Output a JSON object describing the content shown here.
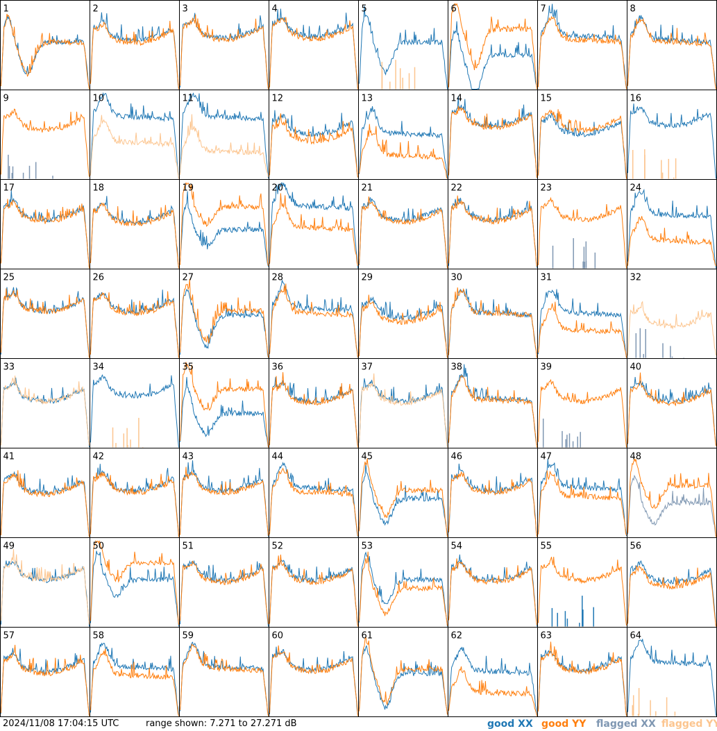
{
  "footer": {
    "timestamp": "2024/11/08 17:04:15 UTC",
    "range_text": "range shown: 7.271 to 27.271 dB"
  },
  "legend": {
    "good_xx": "good XX",
    "good_yy": "good YY",
    "flagged_xx": "flagged XX",
    "flagged_yy": "flagged YY"
  },
  "colors": {
    "good_xx": "#1f77b4",
    "good_yy": "#ff7f0e",
    "flagged_xx": "#7f97b2",
    "flagged_yy": "#fcc58f",
    "frame": "#000000",
    "background": "#ffffff"
  },
  "chart_data": {
    "type": "line",
    "layout": "8x8 small multiples of per-antenna spectra",
    "ylim_db": [
      7.271,
      27.271
    ],
    "series_names": [
      "good XX",
      "good YY",
      "flagged XX",
      "flagged YY"
    ],
    "panels": [
      {
        "label": "1",
        "xx": "good",
        "yy": "good",
        "shape": "drop",
        "xx_level": 0.55,
        "yy_level": 0.55,
        "dip": 0.75
      },
      {
        "label": "2",
        "xx": "good",
        "yy": "good",
        "shape": "bowl",
        "xx_level": 0.75,
        "yy_level": 0.72
      },
      {
        "label": "3",
        "xx": "good",
        "yy": "good",
        "shape": "bowl",
        "xx_level": 0.78,
        "yy_level": 0.76
      },
      {
        "label": "4",
        "xx": "good",
        "yy": "good",
        "shape": "bowl",
        "xx_level": 0.8,
        "yy_level": 0.77
      },
      {
        "label": "5",
        "xx": "good",
        "yy": "flagged",
        "shape": "drop",
        "xx_level": 0.55,
        "yy_level": 0.0,
        "dip": 0.7
      },
      {
        "label": "6",
        "xx": "good",
        "yy": "good",
        "shape": "drop",
        "xx_level": 0.4,
        "yy_level": 0.7,
        "dip": 0.9
      },
      {
        "label": "7",
        "xx": "good",
        "yy": "good",
        "shape": "flat",
        "xx_level": 0.65,
        "yy_level": 0.6
      },
      {
        "label": "8",
        "xx": "good",
        "yy": "good",
        "shape": "flat",
        "xx_level": 0.6,
        "yy_level": 0.58
      },
      {
        "label": "9",
        "xx": "flagged",
        "yy": "good",
        "shape": "bowl",
        "xx_level": 0.0,
        "yy_level": 0.75
      },
      {
        "label": "10",
        "xx": "good",
        "yy": "flagged",
        "shape": "flat",
        "xx_level": 0.75,
        "yy_level": 0.45
      },
      {
        "label": "11",
        "xx": "good",
        "yy": "flagged",
        "shape": "flat",
        "xx_level": 0.75,
        "yy_level": 0.35
      },
      {
        "label": "12",
        "xx": "good",
        "yy": "good",
        "shape": "bowl",
        "xx_level": 0.7,
        "yy_level": 0.62
      },
      {
        "label": "13",
        "xx": "good",
        "yy": "good",
        "shape": "flat",
        "xx_level": 0.55,
        "yy_level": 0.3
      },
      {
        "label": "14",
        "xx": "good",
        "yy": "good",
        "shape": "bowl",
        "xx_level": 0.8,
        "yy_level": 0.78
      },
      {
        "label": "15",
        "xx": "good",
        "yy": "good",
        "shape": "bowl",
        "xx_level": 0.7,
        "yy_level": 0.75
      },
      {
        "label": "16",
        "xx": "good",
        "yy": "flagged",
        "shape": "bowl",
        "xx_level": 0.8,
        "yy_level": 0.0
      },
      {
        "label": "17",
        "xx": "good",
        "yy": "good",
        "shape": "bowl",
        "xx_level": 0.75,
        "yy_level": 0.73
      },
      {
        "label": "18",
        "xx": "good",
        "yy": "good",
        "shape": "bowl",
        "xx_level": 0.72,
        "yy_level": 0.7
      },
      {
        "label": "19",
        "xx": "good",
        "yy": "good",
        "shape": "drop",
        "xx_level": 0.45,
        "yy_level": 0.72,
        "dip": 0.4
      },
      {
        "label": "20",
        "xx": "good",
        "yy": "good",
        "shape": "flat",
        "xx_level": 0.75,
        "yy_level": 0.5
      },
      {
        "label": "21",
        "xx": "good",
        "yy": "good",
        "shape": "bowl",
        "xx_level": 0.75,
        "yy_level": 0.72
      },
      {
        "label": "22",
        "xx": "good",
        "yy": "good",
        "shape": "bowl",
        "xx_level": 0.75,
        "yy_level": 0.73
      },
      {
        "label": "23",
        "xx": "flagged",
        "yy": "good",
        "shape": "bowl",
        "xx_level": 0.0,
        "yy_level": 0.75
      },
      {
        "label": "24",
        "xx": "good",
        "yy": "good",
        "shape": "flat",
        "xx_level": 0.65,
        "yy_level": 0.35
      },
      {
        "label": "25",
        "xx": "good",
        "yy": "good",
        "shape": "bowl",
        "xx_level": 0.72,
        "yy_level": 0.72
      },
      {
        "label": "26",
        "xx": "good",
        "yy": "good",
        "shape": "bowl",
        "xx_level": 0.72,
        "yy_level": 0.7
      },
      {
        "label": "27",
        "xx": "good",
        "yy": "good",
        "shape": "drop",
        "xx_level": 0.5,
        "yy_level": 0.55,
        "dip": 0.75
      },
      {
        "label": "28",
        "xx": "good",
        "yy": "good",
        "shape": "flat",
        "xx_level": 0.6,
        "yy_level": 0.55
      },
      {
        "label": "29",
        "xx": "good",
        "yy": "good",
        "shape": "bowl",
        "xx_level": 0.65,
        "yy_level": 0.6
      },
      {
        "label": "30",
        "xx": "good",
        "yy": "good",
        "shape": "flat",
        "xx_level": 0.55,
        "yy_level": 0.55
      },
      {
        "label": "31",
        "xx": "good",
        "yy": "good",
        "shape": "flat",
        "xx_level": 0.55,
        "yy_level": 0.35
      },
      {
        "label": "32",
        "xx": "flagged",
        "yy": "flagged",
        "shape": "bowl",
        "xx_level": 0.0,
        "yy_level": 0.55
      },
      {
        "label": "33",
        "xx": "good",
        "yy": "flagged",
        "shape": "bowl",
        "xx_level": 0.72,
        "yy_level": 0.72
      },
      {
        "label": "34",
        "xx": "good",
        "yy": "flagged",
        "shape": "bowl",
        "xx_level": 0.78,
        "yy_level": 0.0
      },
      {
        "label": "35",
        "xx": "good",
        "yy": "good",
        "shape": "drop",
        "xx_level": 0.4,
        "yy_level": 0.68,
        "dip": 0.5
      },
      {
        "label": "36",
        "xx": "good",
        "yy": "good",
        "shape": "bowl",
        "xx_level": 0.72,
        "yy_level": 0.7
      },
      {
        "label": "37",
        "xx": "good",
        "yy": "flagged",
        "shape": "bowl",
        "xx_level": 0.72,
        "yy_level": 0.7
      },
      {
        "label": "38",
        "xx": "good",
        "yy": "good",
        "shape": "flat",
        "xx_level": 0.6,
        "yy_level": 0.58
      },
      {
        "label": "39",
        "xx": "flagged",
        "yy": "good",
        "shape": "bowl",
        "xx_level": 0.0,
        "yy_level": 0.72
      },
      {
        "label": "40",
        "xx": "good",
        "yy": "good",
        "shape": "bowl",
        "xx_level": 0.72,
        "yy_level": 0.7
      },
      {
        "label": "41",
        "xx": "good",
        "yy": "good",
        "shape": "bowl",
        "xx_level": 0.7,
        "yy_level": 0.68
      },
      {
        "label": "42",
        "xx": "good",
        "yy": "good",
        "shape": "bowl",
        "xx_level": 0.72,
        "yy_level": 0.7
      },
      {
        "label": "43",
        "xx": "good",
        "yy": "good",
        "shape": "bowl",
        "xx_level": 0.72,
        "yy_level": 0.7
      },
      {
        "label": "44",
        "xx": "good",
        "yy": "good",
        "shape": "flat",
        "xx_level": 0.6,
        "yy_level": 0.55
      },
      {
        "label": "45",
        "xx": "good",
        "yy": "good",
        "shape": "drop",
        "xx_level": 0.45,
        "yy_level": 0.55,
        "dip": 0.6
      },
      {
        "label": "46",
        "xx": "good",
        "yy": "good",
        "shape": "bowl",
        "xx_level": 0.72,
        "yy_level": 0.7
      },
      {
        "label": "47",
        "xx": "good",
        "yy": "good",
        "shape": "flat",
        "xx_level": 0.6,
        "yy_level": 0.5
      },
      {
        "label": "48",
        "xx": "flagged",
        "yy": "good",
        "shape": "drop",
        "xx_level": 0.4,
        "yy_level": 0.6,
        "dip": 0.5
      },
      {
        "label": "49",
        "xx": "good",
        "yy": "flagged",
        "shape": "bowl",
        "xx_level": 0.72,
        "yy_level": 0.72
      },
      {
        "label": "50",
        "xx": "good",
        "yy": "good",
        "shape": "drop",
        "xx_level": 0.55,
        "yy_level": 0.75,
        "dip": 0.4
      },
      {
        "label": "51",
        "xx": "good",
        "yy": "good",
        "shape": "bowl",
        "xx_level": 0.72,
        "yy_level": 0.7
      },
      {
        "label": "52",
        "xx": "good",
        "yy": "good",
        "shape": "bowl",
        "xx_level": 0.72,
        "yy_level": 0.7
      },
      {
        "label": "53",
        "xx": "good",
        "yy": "good",
        "shape": "drop",
        "xx_level": 0.55,
        "yy_level": 0.45,
        "dip": 0.6
      },
      {
        "label": "54",
        "xx": "good",
        "yy": "good",
        "shape": "bowl",
        "xx_level": 0.72,
        "yy_level": 0.7
      },
      {
        "label": "55",
        "xx": "good",
        "yy": "good",
        "shape": "bowl",
        "xx_level": 0.0,
        "yy_level": 0.72
      },
      {
        "label": "56",
        "xx": "good",
        "yy": "good",
        "shape": "bowl",
        "xx_level": 0.7,
        "yy_level": 0.65
      },
      {
        "label": "57",
        "xx": "good",
        "yy": "good",
        "shape": "bowl",
        "xx_level": 0.7,
        "yy_level": 0.68
      },
      {
        "label": "58",
        "xx": "good",
        "yy": "good",
        "shape": "flat",
        "xx_level": 0.6,
        "yy_level": 0.5
      },
      {
        "label": "59",
        "xx": "good",
        "yy": "good",
        "shape": "flat",
        "xx_level": 0.6,
        "yy_level": 0.58
      },
      {
        "label": "60",
        "xx": "good",
        "yy": "good",
        "shape": "bowl",
        "xx_level": 0.72,
        "yy_level": 0.7
      },
      {
        "label": "61",
        "xx": "good",
        "yy": "good",
        "shape": "drop",
        "xx_level": 0.5,
        "yy_level": 0.55,
        "dip": 0.8
      },
      {
        "label": "62",
        "xx": "good",
        "yy": "good",
        "shape": "flat",
        "xx_level": 0.55,
        "yy_level": 0.3
      },
      {
        "label": "63",
        "xx": "good",
        "yy": "good",
        "shape": "bowl",
        "xx_level": 0.72,
        "yy_level": 0.7
      },
      {
        "label": "64",
        "xx": "good",
        "yy": "flagged",
        "shape": "flat",
        "xx_level": 0.65,
        "yy_level": 0.0
      }
    ]
  }
}
